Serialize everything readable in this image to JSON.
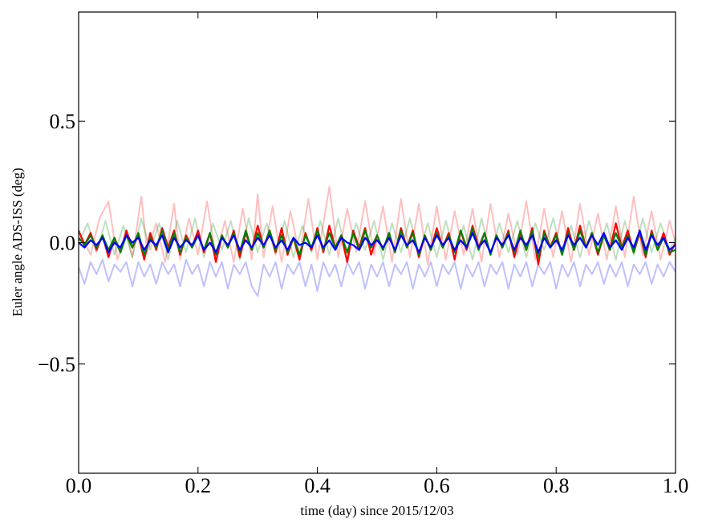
{
  "chart_data": {
    "type": "line",
    "title": "",
    "xlabel": "time (day) since 2015/12/03",
    "ylabel": "Euler angle ADS-ISS (deg)",
    "xlim": [
      0.0,
      1.0
    ],
    "ylim": [
      -0.95,
      0.95
    ],
    "xticks": [
      0.0,
      0.2,
      0.4,
      0.6,
      0.8,
      1.0
    ],
    "xtick_labels": [
      "0.0",
      "0.2",
      "0.4",
      "0.6",
      "0.8",
      "1.0"
    ],
    "yticks": [
      0.5,
      0.0,
      -0.5
    ],
    "ytick_labels": [
      "0.5",
      "0.0",
      "−0.5"
    ],
    "grid": false,
    "legend": false,
    "series": [
      {
        "color": "#ff0000",
        "alpha": 0.25,
        "x": [
          0.0,
          0.02,
          0.035,
          0.05,
          0.065,
          0.08,
          0.09,
          0.105,
          0.115,
          0.13,
          0.145,
          0.16,
          0.17,
          0.185,
          0.2,
          0.215,
          0.23,
          0.245,
          0.26,
          0.275,
          0.29,
          0.3,
          0.31,
          0.325,
          0.34,
          0.355,
          0.37,
          0.385,
          0.4,
          0.42,
          0.435,
          0.45,
          0.465,
          0.48,
          0.495,
          0.51,
          0.525,
          0.54,
          0.555,
          0.57,
          0.585,
          0.6,
          0.615,
          0.63,
          0.645,
          0.66,
          0.675,
          0.69,
          0.705,
          0.72,
          0.735,
          0.75,
          0.765,
          0.78,
          0.795,
          0.81,
          0.825,
          0.84,
          0.855,
          0.87,
          0.885,
          0.9,
          0.915,
          0.93,
          0.945,
          0.96,
          0.975,
          0.99,
          1.0
        ],
        "y": [
          0.05,
          -0.05,
          0.1,
          0.17,
          -0.07,
          0.04,
          -0.06,
          0.19,
          -0.04,
          0.08,
          -0.08,
          0.16,
          -0.07,
          0.1,
          -0.05,
          0.17,
          -0.06,
          0.09,
          -0.08,
          0.14,
          -0.07,
          0.2,
          -0.06,
          0.15,
          -0.08,
          0.13,
          -0.05,
          0.18,
          -0.07,
          0.23,
          -0.06,
          0.14,
          -0.04,
          0.17,
          -0.05,
          0.15,
          -0.08,
          0.18,
          -0.06,
          0.16,
          -0.09,
          0.15,
          -0.07,
          0.13,
          -0.05,
          0.14,
          -0.08,
          0.16,
          -0.06,
          0.12,
          -0.05,
          0.17,
          -0.07,
          0.14,
          -0.06,
          0.13,
          -0.08,
          0.16,
          -0.05,
          0.12,
          -0.07,
          0.15,
          -0.06,
          0.19,
          -0.05,
          0.13,
          -0.07,
          0.09,
          0.0
        ]
      },
      {
        "color": "#008000",
        "alpha": 0.25,
        "x": [
          0.0,
          0.015,
          0.03,
          0.045,
          0.06,
          0.075,
          0.09,
          0.105,
          0.12,
          0.135,
          0.15,
          0.165,
          0.18,
          0.195,
          0.21,
          0.225,
          0.24,
          0.255,
          0.27,
          0.285,
          0.3,
          0.315,
          0.33,
          0.345,
          0.36,
          0.375,
          0.39,
          0.405,
          0.42,
          0.435,
          0.45,
          0.465,
          0.48,
          0.495,
          0.51,
          0.525,
          0.54,
          0.555,
          0.57,
          0.585,
          0.6,
          0.615,
          0.63,
          0.645,
          0.66,
          0.675,
          0.69,
          0.705,
          0.72,
          0.735,
          0.75,
          0.765,
          0.78,
          0.795,
          0.81,
          0.825,
          0.84,
          0.855,
          0.87,
          0.885,
          0.9,
          0.915,
          0.93,
          0.945,
          0.96,
          0.975,
          0.99,
          1.0
        ],
        "y": [
          0.0,
          0.08,
          -0.04,
          0.09,
          -0.05,
          0.07,
          -0.06,
          0.1,
          -0.03,
          0.08,
          -0.07,
          0.09,
          -0.04,
          0.1,
          -0.06,
          0.08,
          -0.03,
          0.09,
          -0.07,
          0.1,
          -0.04,
          0.08,
          -0.05,
          0.09,
          -0.06,
          0.07,
          -0.04,
          0.09,
          -0.05,
          0.1,
          -0.06,
          0.08,
          -0.03,
          0.09,
          -0.07,
          0.08,
          -0.04,
          0.1,
          -0.05,
          0.08,
          -0.06,
          0.09,
          -0.04,
          0.07,
          -0.07,
          0.1,
          -0.05,
          0.08,
          -0.04,
          0.09,
          -0.06,
          0.08,
          -0.03,
          0.1,
          -0.05,
          0.07,
          -0.06,
          0.09,
          -0.04,
          0.08,
          -0.07,
          0.09,
          -0.05,
          0.1,
          -0.04,
          0.08,
          -0.03,
          0.02
        ]
      },
      {
        "color": "#0000ff",
        "alpha": 0.25,
        "x": [
          0.0,
          0.01,
          0.02,
          0.03,
          0.04,
          0.05,
          0.06,
          0.07,
          0.08,
          0.09,
          0.1,
          0.11,
          0.12,
          0.13,
          0.14,
          0.15,
          0.16,
          0.17,
          0.18,
          0.19,
          0.2,
          0.21,
          0.22,
          0.23,
          0.24,
          0.25,
          0.26,
          0.27,
          0.28,
          0.29,
          0.3,
          0.31,
          0.32,
          0.33,
          0.34,
          0.35,
          0.36,
          0.37,
          0.38,
          0.39,
          0.4,
          0.41,
          0.42,
          0.43,
          0.44,
          0.45,
          0.46,
          0.47,
          0.48,
          0.49,
          0.5,
          0.51,
          0.52,
          0.53,
          0.54,
          0.55,
          0.56,
          0.57,
          0.58,
          0.59,
          0.6,
          0.61,
          0.62,
          0.63,
          0.64,
          0.65,
          0.66,
          0.67,
          0.68,
          0.69,
          0.7,
          0.71,
          0.72,
          0.73,
          0.74,
          0.75,
          0.76,
          0.77,
          0.78,
          0.79,
          0.8,
          0.81,
          0.82,
          0.83,
          0.84,
          0.85,
          0.86,
          0.87,
          0.88,
          0.89,
          0.9,
          0.91,
          0.92,
          0.93,
          0.94,
          0.95,
          0.96,
          0.97,
          0.98,
          0.99,
          1.0
        ],
        "y": [
          -0.1,
          -0.17,
          -0.08,
          -0.13,
          -0.07,
          -0.16,
          -0.09,
          -0.12,
          -0.08,
          -0.18,
          -0.08,
          -0.14,
          -0.09,
          -0.17,
          -0.08,
          -0.13,
          -0.09,
          -0.18,
          -0.07,
          -0.13,
          -0.09,
          -0.18,
          -0.08,
          -0.14,
          -0.08,
          -0.19,
          -0.09,
          -0.13,
          -0.08,
          -0.18,
          -0.22,
          -0.09,
          -0.14,
          -0.08,
          -0.19,
          -0.09,
          -0.13,
          -0.08,
          -0.18,
          -0.09,
          -0.2,
          -0.08,
          -0.14,
          -0.09,
          -0.18,
          -0.08,
          -0.13,
          -0.08,
          -0.19,
          -0.09,
          -0.14,
          -0.08,
          -0.18,
          -0.09,
          -0.13,
          -0.08,
          -0.19,
          -0.09,
          -0.14,
          -0.08,
          -0.18,
          -0.09,
          -0.13,
          -0.08,
          -0.19,
          -0.09,
          -0.14,
          -0.08,
          -0.18,
          -0.09,
          -0.13,
          -0.08,
          -0.19,
          -0.09,
          -0.14,
          -0.08,
          -0.18,
          -0.09,
          -0.13,
          -0.08,
          -0.19,
          -0.09,
          -0.14,
          -0.08,
          -0.18,
          -0.09,
          -0.13,
          -0.08,
          -0.17,
          -0.09,
          -0.14,
          -0.08,
          -0.18,
          -0.09,
          -0.13,
          -0.08,
          -0.17,
          -0.09,
          -0.14,
          -0.08,
          -0.12
        ]
      },
      {
        "color": "#ff0000",
        "alpha": 1.0,
        "x": [
          0.0,
          0.01,
          0.02,
          0.03,
          0.04,
          0.05,
          0.06,
          0.07,
          0.08,
          0.09,
          0.1,
          0.11,
          0.12,
          0.13,
          0.14,
          0.15,
          0.16,
          0.17,
          0.18,
          0.19,
          0.2,
          0.21,
          0.22,
          0.23,
          0.24,
          0.25,
          0.26,
          0.27,
          0.28,
          0.29,
          0.3,
          0.31,
          0.32,
          0.33,
          0.34,
          0.35,
          0.36,
          0.37,
          0.38,
          0.39,
          0.4,
          0.41,
          0.42,
          0.43,
          0.44,
          0.45,
          0.46,
          0.47,
          0.48,
          0.49,
          0.5,
          0.51,
          0.52,
          0.53,
          0.54,
          0.55,
          0.56,
          0.57,
          0.58,
          0.59,
          0.6,
          0.61,
          0.62,
          0.63,
          0.64,
          0.65,
          0.66,
          0.67,
          0.68,
          0.69,
          0.7,
          0.71,
          0.72,
          0.73,
          0.74,
          0.75,
          0.76,
          0.77,
          0.78,
          0.79,
          0.8,
          0.81,
          0.82,
          0.83,
          0.84,
          0.85,
          0.86,
          0.87,
          0.88,
          0.89,
          0.9,
          0.91,
          0.92,
          0.93,
          0.94,
          0.95,
          0.96,
          0.97,
          0.98,
          0.99,
          1.0
        ],
        "y": [
          0.05,
          -0.01,
          0.04,
          -0.03,
          0.03,
          -0.06,
          0.02,
          -0.04,
          0.05,
          -0.02,
          0.03,
          -0.07,
          0.04,
          -0.03,
          0.06,
          -0.02,
          0.05,
          -0.05,
          0.03,
          -0.02,
          0.05,
          -0.04,
          0.04,
          -0.08,
          0.03,
          -0.02,
          0.05,
          -0.06,
          0.04,
          -0.03,
          0.07,
          -0.02,
          0.05,
          -0.04,
          0.06,
          -0.05,
          0.02,
          -0.07,
          0.04,
          -0.03,
          0.06,
          -0.04,
          0.07,
          -0.02,
          0.03,
          -0.08,
          0.05,
          -0.02,
          0.06,
          -0.05,
          0.03,
          -0.03,
          0.04,
          -0.04,
          0.06,
          -0.02,
          0.05,
          -0.06,
          0.03,
          -0.03,
          0.06,
          -0.02,
          0.04,
          -0.07,
          0.05,
          -0.03,
          0.07,
          -0.02,
          0.04,
          -0.05,
          0.03,
          -0.02,
          0.05,
          -0.06,
          0.04,
          -0.03,
          0.06,
          -0.09,
          0.05,
          -0.02,
          0.04,
          -0.05,
          0.06,
          -0.03,
          0.07,
          -0.02,
          0.04,
          -0.05,
          0.03,
          -0.03,
          0.08,
          -0.02,
          0.05,
          -0.04,
          0.04,
          -0.06,
          0.05,
          -0.03,
          0.04,
          -0.05,
          0.0
        ]
      },
      {
        "color": "#008000",
        "alpha": 1.0,
        "x": [
          0.0,
          0.01,
          0.02,
          0.03,
          0.04,
          0.05,
          0.06,
          0.07,
          0.08,
          0.09,
          0.1,
          0.11,
          0.12,
          0.13,
          0.14,
          0.15,
          0.16,
          0.17,
          0.18,
          0.19,
          0.2,
          0.21,
          0.22,
          0.23,
          0.24,
          0.25,
          0.26,
          0.27,
          0.28,
          0.29,
          0.3,
          0.31,
          0.32,
          0.33,
          0.34,
          0.35,
          0.36,
          0.37,
          0.38,
          0.39,
          0.4,
          0.41,
          0.42,
          0.43,
          0.44,
          0.45,
          0.46,
          0.47,
          0.48,
          0.49,
          0.5,
          0.51,
          0.52,
          0.53,
          0.54,
          0.55,
          0.56,
          0.57,
          0.58,
          0.59,
          0.6,
          0.61,
          0.62,
          0.63,
          0.64,
          0.65,
          0.66,
          0.67,
          0.68,
          0.69,
          0.7,
          0.71,
          0.72,
          0.73,
          0.74,
          0.75,
          0.76,
          0.77,
          0.78,
          0.79,
          0.8,
          0.81,
          0.82,
          0.83,
          0.84,
          0.85,
          0.86,
          0.87,
          0.88,
          0.89,
          0.9,
          0.91,
          0.92,
          0.93,
          0.94,
          0.95,
          0.96,
          0.97,
          0.98,
          0.99,
          1.0
        ],
        "y": [
          0.02,
          -0.01,
          0.03,
          -0.02,
          0.03,
          -0.03,
          0.02,
          -0.04,
          0.03,
          -0.02,
          0.04,
          -0.05,
          0.02,
          -0.02,
          0.05,
          -0.03,
          0.04,
          -0.04,
          0.02,
          -0.02,
          0.03,
          -0.03,
          0.04,
          -0.05,
          0.03,
          -0.02,
          0.04,
          -0.04,
          0.05,
          -0.03,
          0.04,
          -0.02,
          0.05,
          -0.03,
          0.03,
          -0.04,
          0.02,
          -0.05,
          0.03,
          -0.02,
          0.05,
          -0.03,
          0.04,
          -0.02,
          0.03,
          -0.04,
          0.04,
          -0.03,
          0.05,
          -0.02,
          0.03,
          -0.03,
          0.04,
          -0.04,
          0.05,
          -0.02,
          0.04,
          -0.05,
          0.03,
          -0.03,
          0.04,
          -0.02,
          0.03,
          -0.04,
          0.05,
          -0.02,
          0.06,
          -0.03,
          0.04,
          -0.05,
          0.03,
          -0.02,
          0.04,
          -0.04,
          0.05,
          -0.03,
          0.05,
          -0.06,
          0.04,
          -0.02,
          0.03,
          -0.05,
          0.04,
          -0.03,
          0.05,
          -0.02,
          0.04,
          -0.04,
          0.03,
          -0.03,
          0.04,
          -0.02,
          0.03,
          -0.04,
          0.05,
          -0.05,
          0.04,
          -0.03,
          0.02,
          -0.04,
          -0.03
        ]
      },
      {
        "color": "#0000ff",
        "alpha": 1.0,
        "x": [
          0.0,
          0.01,
          0.02,
          0.03,
          0.04,
          0.05,
          0.06,
          0.07,
          0.08,
          0.09,
          0.1,
          0.11,
          0.12,
          0.13,
          0.14,
          0.15,
          0.16,
          0.17,
          0.18,
          0.19,
          0.2,
          0.21,
          0.22,
          0.23,
          0.24,
          0.25,
          0.26,
          0.27,
          0.28,
          0.29,
          0.3,
          0.31,
          0.32,
          0.33,
          0.34,
          0.35,
          0.36,
          0.37,
          0.38,
          0.39,
          0.4,
          0.41,
          0.42,
          0.43,
          0.44,
          0.45,
          0.46,
          0.47,
          0.48,
          0.49,
          0.5,
          0.51,
          0.52,
          0.53,
          0.54,
          0.55,
          0.56,
          0.57,
          0.58,
          0.59,
          0.6,
          0.61,
          0.62,
          0.63,
          0.64,
          0.65,
          0.66,
          0.67,
          0.68,
          0.69,
          0.7,
          0.71,
          0.72,
          0.73,
          0.74,
          0.75,
          0.76,
          0.77,
          0.78,
          0.79,
          0.8,
          0.81,
          0.82,
          0.83,
          0.84,
          0.85,
          0.86,
          0.87,
          0.88,
          0.89,
          0.9,
          0.91,
          0.92,
          0.93,
          0.94,
          0.95,
          0.96,
          0.97,
          0.98,
          0.99,
          1.0
        ],
        "y": [
          0.0,
          -0.02,
          0.01,
          -0.01,
          0.02,
          -0.04,
          0.0,
          -0.02,
          0.03,
          0.0,
          0.02,
          -0.03,
          0.01,
          -0.01,
          0.03,
          -0.04,
          0.02,
          -0.02,
          0.01,
          -0.01,
          0.03,
          -0.03,
          0.0,
          -0.04,
          0.02,
          -0.01,
          0.03,
          -0.03,
          0.01,
          -0.02,
          0.02,
          -0.01,
          0.03,
          -0.02,
          0.01,
          -0.03,
          0.02,
          -0.01,
          0.0,
          -0.02,
          0.03,
          -0.02,
          0.01,
          -0.03,
          0.02,
          0.0,
          -0.01,
          -0.03,
          0.02,
          -0.01,
          0.01,
          -0.02,
          0.02,
          -0.03,
          0.03,
          -0.01,
          0.01,
          -0.04,
          0.02,
          -0.02,
          0.03,
          -0.01,
          0.02,
          -0.03,
          0.01,
          -0.02,
          0.04,
          -0.02,
          0.01,
          -0.04,
          0.02,
          -0.01,
          0.03,
          -0.03,
          0.02,
          -0.01,
          0.03,
          -0.04,
          0.02,
          -0.02,
          0.01,
          -0.03,
          0.03,
          -0.01,
          0.02,
          -0.02,
          0.03,
          -0.01,
          0.04,
          -0.02,
          0.01,
          -0.03,
          0.02,
          -0.02,
          0.05,
          -0.03,
          0.03,
          -0.01,
          0.02,
          -0.03,
          -0.01
        ]
      }
    ]
  }
}
